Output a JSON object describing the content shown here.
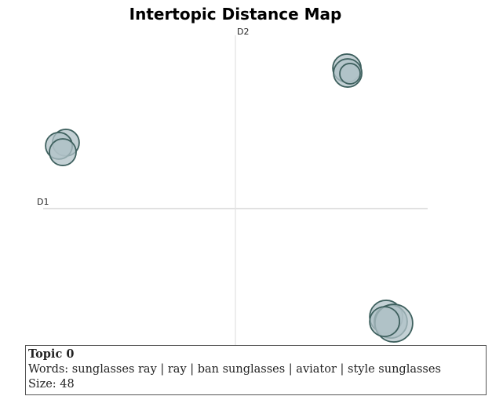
{
  "chart_data": {
    "type": "scatter",
    "title": "Intertopic Distance Map",
    "xlabel": "D1",
    "ylabel": "D2",
    "xlim": [
      -10,
      10
    ],
    "ylim": [
      -10,
      10
    ],
    "grid": false,
    "marker_color": "#b0c1c7",
    "marker_edge_color": "#3f615f",
    "points": [
      {
        "x": 5.8,
        "y": 8.14,
        "r": 18
      },
      {
        "x": 5.84,
        "y": 7.86,
        "r": 18
      },
      {
        "x": 5.96,
        "y": 7.82,
        "r": 13
      },
      {
        "x": -8.82,
        "y": 3.82,
        "r": 17
      },
      {
        "x": -9.18,
        "y": 3.64,
        "r": 17
      },
      {
        "x": -8.98,
        "y": 3.27,
        "r": 17
      },
      {
        "x": 7.84,
        "y": -6.27,
        "r": 21
      },
      {
        "x": 8.08,
        "y": -6.55,
        "r": 21
      },
      {
        "x": 8.24,
        "y": -6.64,
        "r": 24
      },
      {
        "x": 7.76,
        "y": -6.55,
        "r": 19
      }
    ]
  },
  "tooltip": {
    "topic": "Topic 0",
    "words": "Words: sunglasses ray | ray | ban sunglasses | aviator | style sunglasses",
    "size": "Size: 48"
  }
}
